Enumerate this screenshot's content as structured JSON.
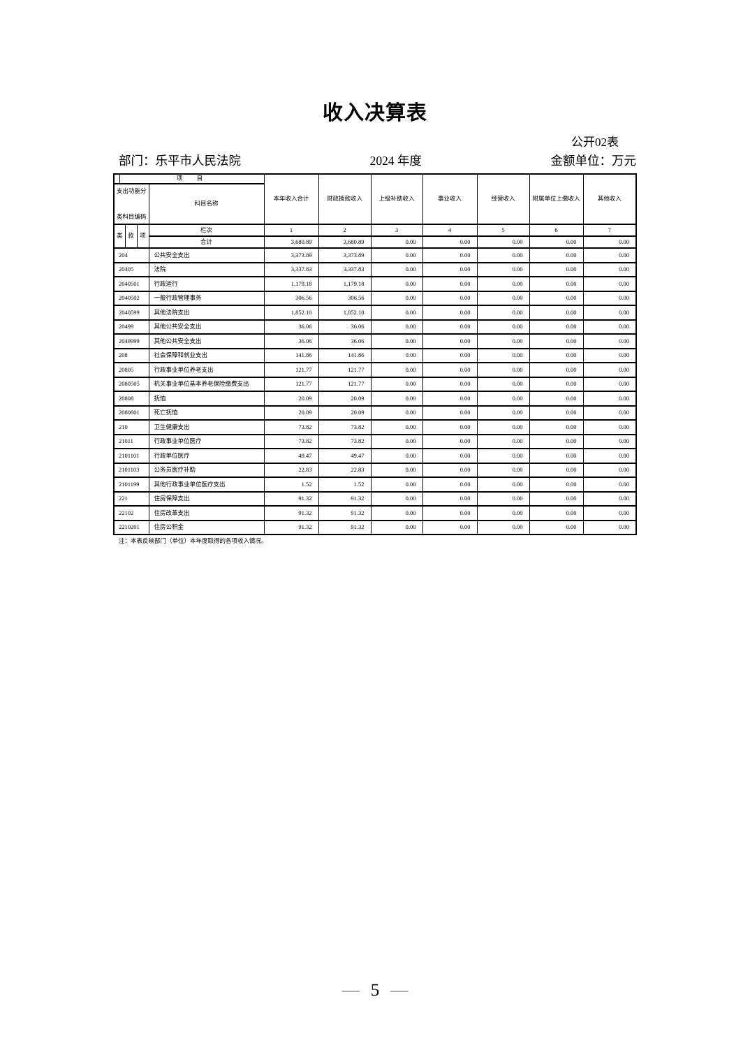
{
  "doc": {
    "title": "收入决算表",
    "table_label": "公开02表",
    "department": "部门：乐平市人民法院",
    "year": "2024 年度",
    "unit": "金额单位：万元",
    "note": "注：本表反映部门（单位）本年度取得的各项收入情况。",
    "page_number": "5",
    "page_dash": "—"
  },
  "table": {
    "corner": {
      "item_label": "项　目",
      "code_header_line1": "支出功能分",
      "code_header_line2": "类科目编码",
      "name_header": "科目名称",
      "code_cols": [
        "类",
        "款",
        "项"
      ],
      "row_index_label": "栏次",
      "total_label": "合计"
    },
    "columns": [
      "本年收入合计",
      "财政拨款收入",
      "上级补助收入",
      "事业收入",
      "经营收入",
      "附属单位上缴收入",
      "其他收入"
    ],
    "column_numbers": [
      "1",
      "2",
      "3",
      "4",
      "5",
      "6",
      "7"
    ],
    "total_row": {
      "values": [
        "3,680.89",
        "3,680.89",
        "0.00",
        "0.00",
        "0.00",
        "0.00",
        "0.00"
      ]
    },
    "rows": [
      {
        "code": "204",
        "name": "公共安全支出",
        "values": [
          "3,373.89",
          "3,373.89",
          "0.00",
          "0.00",
          "0.00",
          "0.00",
          "0.00"
        ]
      },
      {
        "code": "20405",
        "name": "法院",
        "values": [
          "3,337.83",
          "3,337.83",
          "0.00",
          "0.00",
          "0.00",
          "0.00",
          "0.00"
        ]
      },
      {
        "code": "2040501",
        "name": "行政运行",
        "values": [
          "1,179.18",
          "1,179.18",
          "0.00",
          "0.00",
          "0.00",
          "0.00",
          "0.00"
        ]
      },
      {
        "code": "2040502",
        "name": "一般行政管理事务",
        "values": [
          "306.56",
          "306.56",
          "0.00",
          "0.00",
          "0.00",
          "0.00",
          "0.00"
        ]
      },
      {
        "code": "2040599",
        "name": "其他法院支出",
        "values": [
          "1,852.10",
          "1,852.10",
          "0.00",
          "0.00",
          "0.00",
          "0.00",
          "0.00"
        ]
      },
      {
        "code": "20499",
        "name": "其他公共安全支出",
        "values": [
          "36.06",
          "36.06",
          "0.00",
          "0.00",
          "0.00",
          "0.00",
          "0.00"
        ]
      },
      {
        "code": "2049999",
        "name": "其他公共安全支出",
        "values": [
          "36.06",
          "36.06",
          "0.00",
          "0.00",
          "0.00",
          "0.00",
          "0.00"
        ]
      },
      {
        "code": "208",
        "name": "社会保障和就业支出",
        "values": [
          "141.86",
          "141.86",
          "0.00",
          "0.00",
          "0.00",
          "0.00",
          "0.00"
        ]
      },
      {
        "code": "20805",
        "name": "行政事业单位养老支出",
        "values": [
          "121.77",
          "121.77",
          "0.00",
          "0.00",
          "0.00",
          "0.00",
          "0.00"
        ]
      },
      {
        "code": "2080505",
        "name": "机关事业单位基本养老保险缴费支出",
        "values": [
          "121.77",
          "121.77",
          "0.00",
          "0.00",
          "0.00",
          "0.00",
          "0.00"
        ]
      },
      {
        "code": "20808",
        "name": "抚恤",
        "values": [
          "20.09",
          "20.09",
          "0.00",
          "0.00",
          "0.00",
          "0.00",
          "0.00"
        ]
      },
      {
        "code": "2080801",
        "name": "死亡抚恤",
        "values": [
          "20.09",
          "20.09",
          "0.00",
          "0.00",
          "0.00",
          "0.00",
          "0.00"
        ]
      },
      {
        "code": "210",
        "name": "卫生健康支出",
        "values": [
          "73.82",
          "73.82",
          "0.00",
          "0.00",
          "0.00",
          "0.00",
          "0.00"
        ]
      },
      {
        "code": "21011",
        "name": "行政事业单位医疗",
        "values": [
          "73.82",
          "73.82",
          "0.00",
          "0.00",
          "0.00",
          "0.00",
          "0.00"
        ]
      },
      {
        "code": "2101101",
        "name": "行政单位医疗",
        "values": [
          "49.47",
          "49.47",
          "0.00",
          "0.00",
          "0.00",
          "0.00",
          "0.00"
        ]
      },
      {
        "code": "2101103",
        "name": "公务员医疗补助",
        "values": [
          "22.83",
          "22.83",
          "0.00",
          "0.00",
          "0.00",
          "0.00",
          "0.00"
        ]
      },
      {
        "code": "2101199",
        "name": "其他行政事业单位医疗支出",
        "values": [
          "1.52",
          "1.52",
          "0.00",
          "0.00",
          "0.00",
          "0.00",
          "0.00"
        ]
      },
      {
        "code": "221",
        "name": "住房保障支出",
        "values": [
          "91.32",
          "91.32",
          "0.00",
          "0.00",
          "0.00",
          "0.00",
          "0.00"
        ]
      },
      {
        "code": "22102",
        "name": "住房改革支出",
        "values": [
          "91.32",
          "91.32",
          "0.00",
          "0.00",
          "0.00",
          "0.00",
          "0.00"
        ]
      },
      {
        "code": "2210201",
        "name": "住房公积金",
        "values": [
          "91.32",
          "91.32",
          "0.00",
          "0.00",
          "0.00",
          "0.00",
          "0.00"
        ]
      }
    ]
  }
}
